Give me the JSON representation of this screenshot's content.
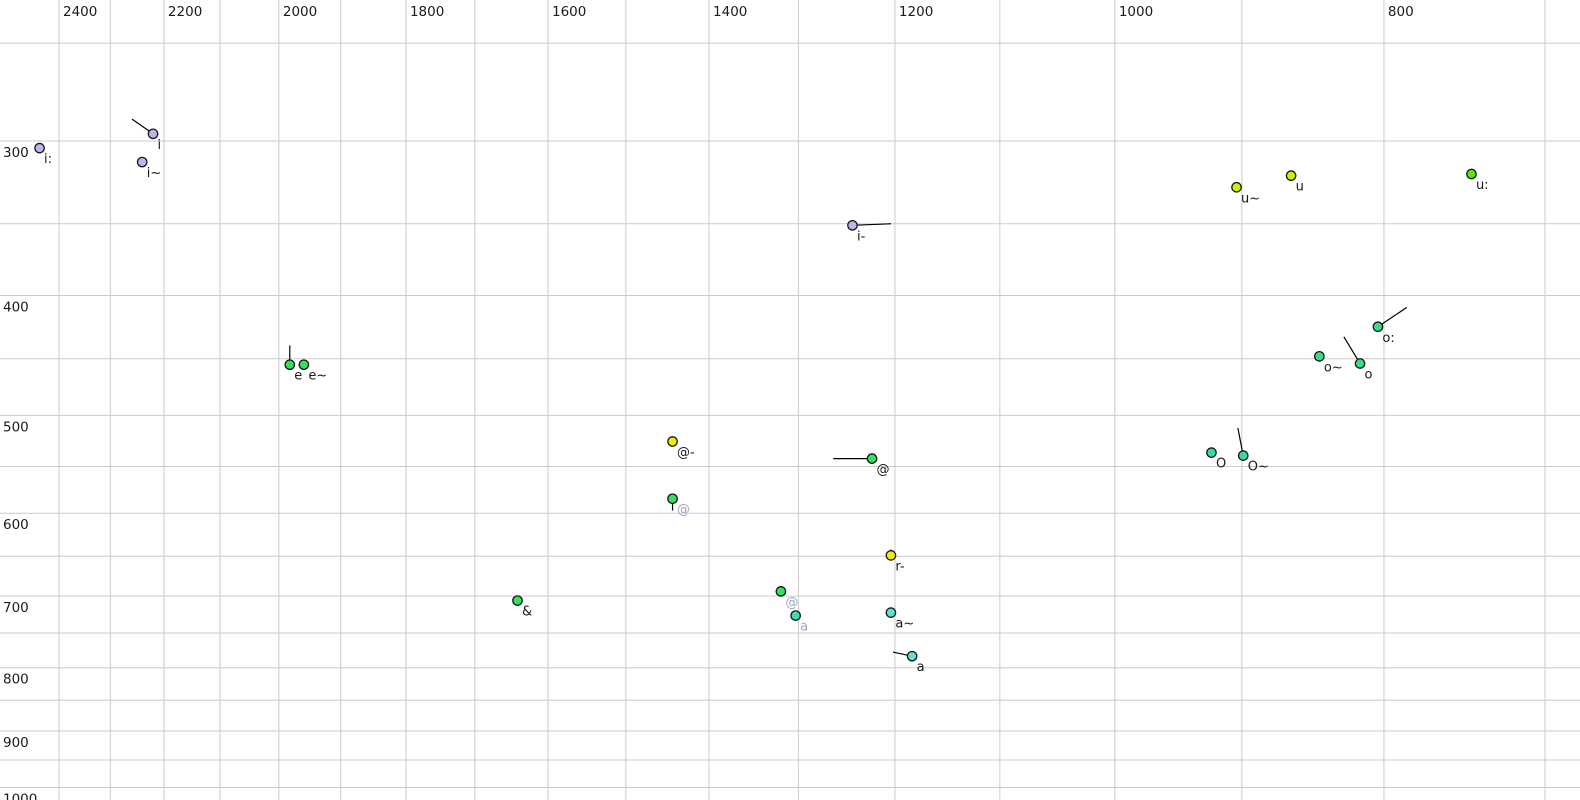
{
  "chart_data": {
    "type": "scatter",
    "title": "",
    "x_axis": {
      "scale": "log",
      "direction": "decreasing-rightward",
      "tick_labels": [
        2400,
        2200,
        2000,
        1800,
        1600,
        1400,
        1200,
        1000,
        800
      ],
      "gridline_step": 100,
      "gridline_max": 2400,
      "gridline_min": 700
    },
    "y_axis": {
      "scale": "log",
      "direction": "increasing-downward",
      "tick_labels": [
        300,
        400,
        500,
        600,
        700,
        800,
        900,
        1000
      ],
      "gridline_step": 50,
      "gridline_min": 250,
      "gridline_max": 1000
    },
    "points": [
      {
        "label": "i:",
        "f2": 2439,
        "f1": 304,
        "color": "lavender",
        "label_color": "black",
        "tail": null
      },
      {
        "label": "i",
        "f2": 2220,
        "f1": 296,
        "color": "lavender",
        "label_color": "black",
        "tail": {
          "f2": 2259,
          "f1": 288
        }
      },
      {
        "label": "i~",
        "f2": 2240,
        "f1": 312,
        "color": "lavender",
        "label_color": "black",
        "tail": null
      },
      {
        "label": "i-",
        "f2": 1243,
        "f1": 351,
        "color": "lavender",
        "label_color": "black",
        "tail": {
          "f2": 1204,
          "f1": 350
        }
      },
      {
        "label": "u~",
        "f2": 904,
        "f1": 327,
        "color": "yellow_green",
        "label_color": "black",
        "tail": null
      },
      {
        "label": "u",
        "f2": 864,
        "f1": 320,
        "color": "yellow_green",
        "label_color": "black",
        "tail": null
      },
      {
        "label": "u:",
        "f2": 744,
        "f1": 319,
        "color": "green_yellow",
        "label_color": "black",
        "tail": null
      },
      {
        "label": "e",
        "f2": 1982,
        "f1": 455,
        "color": "green",
        "label_color": "black",
        "tail": {
          "f2": 1982,
          "f1": 439
        }
      },
      {
        "label": "e~",
        "f2": 1959,
        "f1": 455,
        "color": "green",
        "label_color": "black",
        "tail": null
      },
      {
        "label": "o:",
        "f2": 804,
        "f1": 424,
        "color": "spring_green",
        "label_color": "black",
        "tail": {
          "f2": 785,
          "f1": 409
        }
      },
      {
        "label": "o~",
        "f2": 844,
        "f1": 448,
        "color": "spring_green",
        "label_color": "black",
        "tail": null
      },
      {
        "label": "o",
        "f2": 816,
        "f1": 454,
        "color": "spring_green",
        "label_color": "black",
        "tail": {
          "f2": 827,
          "f1": 432
        }
      },
      {
        "label": "@-",
        "f2": 1443,
        "f1": 525,
        "color": "yellow",
        "label_color": "black",
        "tail": null
      },
      {
        "label": "@",
        "f2": 1223,
        "f1": 542,
        "color": "green",
        "label_color": "black",
        "tail": {
          "f2": 1263,
          "f1": 542
        }
      },
      {
        "label": "@",
        "f2": 1443,
        "f1": 584,
        "color": "green",
        "label_color": "gray",
        "tail": {
          "f2": 1443,
          "f1": 597
        }
      },
      {
        "label": "O",
        "f2": 923,
        "f1": 536,
        "color": "sea_green",
        "label_color": "black",
        "tail": null
      },
      {
        "label": "O~",
        "f2": 899,
        "f1": 539,
        "color": "sea_green",
        "label_color": "black",
        "tail": {
          "f2": 903,
          "f1": 512
        }
      },
      {
        "label": "r-",
        "f2": 1204,
        "f1": 649,
        "color": "yellow",
        "label_color": "black",
        "tail": {
          "f2": 1204,
          "f1": 642
        }
      },
      {
        "label": "@",
        "f2": 1319,
        "f1": 694,
        "color": "green",
        "label_color": "gray",
        "tail": null
      },
      {
        "label": "a",
        "f2": 1303,
        "f1": 726,
        "color": "teal_green",
        "label_color": "gray",
        "tail": null
      },
      {
        "label": "&",
        "f2": 1641,
        "f1": 706,
        "color": "green",
        "label_color": "black",
        "tail": null
      },
      {
        "label": "a~",
        "f2": 1204,
        "f1": 722,
        "color": "turquoise",
        "label_color": "black",
        "tail": null
      },
      {
        "label": "a",
        "f2": 1183,
        "f1": 783,
        "color": "turquoise",
        "label_color": "black",
        "tail": {
          "f2": 1202,
          "f1": 777
        }
      }
    ]
  },
  "colors": {
    "background": "#ffffff",
    "grid": "#cbcbcb",
    "axis_text": "#1a1a1a",
    "point_outline": "#161616",
    "tail_line": "#000000",
    "label_black": "#1a1a1a",
    "label_gray": "#a0a4c4",
    "lavender": "#b9b7ee",
    "yellow_green": "#cdef00",
    "green_yellow": "#5ce600",
    "green": "#36de62",
    "spring_green": "#3eda8b",
    "sea_green": "#3cd8a2",
    "yellow": "#efeb0a",
    "turquoise": "#5fdfd5",
    "teal_green": "#48d9ae"
  }
}
